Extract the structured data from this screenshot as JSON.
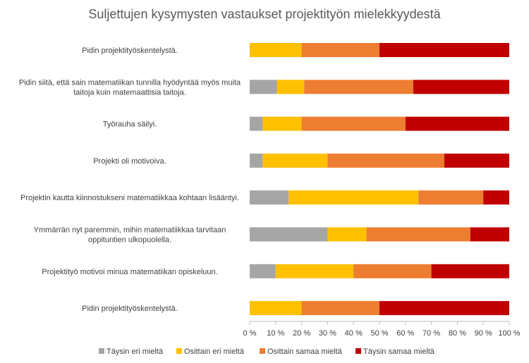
{
  "chart_data": {
    "type": "bar",
    "orientation": "horizontal",
    "stacked": "percent",
    "title": "Suljettujen kysymysten vastaukset projektityön mielekkyydestä",
    "categories": [
      "Pidin projektityöskentelystä.",
      "Pidin siitä, että sain matematiikan tunnilla hyödyntää myös muita taitoja kuin matemaattisia taitoja.",
      "Työrauha säilyi.",
      "Projekti oli motivoiva.",
      "Projektin kautta kiinnostukseni matematiikkaa kohtaan lisääntyi.",
      "Ymmärrän nyt paremmin, mihin matematiikkaa tarvitaan oppituntien ulkopuolella.",
      "Projektityö motivoi minua matematiikan opiskeluun.",
      "Pidin projektityöskentelystä."
    ],
    "series": [
      {
        "name": "Täysin eri mieltä",
        "color": "#a5a5a5",
        "values": [
          0,
          10.5,
          5,
          5,
          15,
          30,
          10,
          0
        ]
      },
      {
        "name": "Osittain eri mieltä",
        "color": "#ffc000",
        "values": [
          20,
          10.5,
          15,
          25,
          50,
          15,
          30,
          20
        ]
      },
      {
        "name": "Osittain samaa mieltä",
        "color": "#ed7d31",
        "values": [
          30,
          42,
          40,
          45,
          25,
          40,
          30,
          30
        ]
      },
      {
        "name": "Täysin samaa mieltä",
        "color": "#c00000",
        "values": [
          50,
          37,
          40,
          25,
          10,
          15,
          30,
          50
        ]
      }
    ],
    "x_ticks": [
      "0 %",
      "10 %",
      "20 %",
      "30 %",
      "40 %",
      "50 %",
      "60 %",
      "70 %",
      "80 %",
      "90 %",
      "100 %"
    ],
    "xlim": [
      0,
      100
    ],
    "grid": false,
    "legend_position": "bottom"
  }
}
